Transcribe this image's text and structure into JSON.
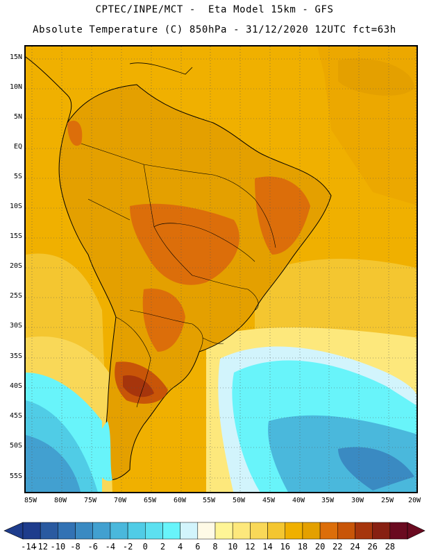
{
  "header": {
    "line1": "CPTEC/INPE/MCT -  Eta Model 15km - GFS",
    "line2": "Absolute Temperature (C) 850hPa - 31/12/2020 12UTC fct=63h"
  },
  "map": {
    "lat_labels": [
      "15N",
      "10N",
      "5N",
      "EQ",
      "5S",
      "10S",
      "15S",
      "20S",
      "25S",
      "30S",
      "35S",
      "40S",
      "45S",
      "50S",
      "55S"
    ],
    "lon_labels": [
      "85W",
      "80W",
      "75W",
      "70W",
      "65W",
      "60W",
      "55W",
      "50W",
      "45W",
      "40W",
      "35W",
      "30W",
      "25W",
      "20W"
    ]
  },
  "colorbar": {
    "labels": [
      "-14",
      "-12",
      "-10",
      "-8",
      "-6",
      "-4",
      "-2",
      "0",
      "2",
      "4",
      "6",
      "8",
      "10",
      "12",
      "14",
      "16",
      "18",
      "20",
      "22",
      "24",
      "26",
      "28"
    ],
    "colors": [
      "#1e3c8c",
      "#2a5aa0",
      "#3272b4",
      "#3a8ac2",
      "#42a0d0",
      "#4ab8dc",
      "#50cce6",
      "#5ce0f0",
      "#68f4fa",
      "#d2f4fc",
      "#fffae6",
      "#fff596",
      "#fde87c",
      "#f9d858",
      "#f4c630",
      "#f0b000",
      "#e4a000",
      "#dc6e0a",
      "#c85508",
      "#a6350c",
      "#872012",
      "#6a0a20"
    ]
  }
}
